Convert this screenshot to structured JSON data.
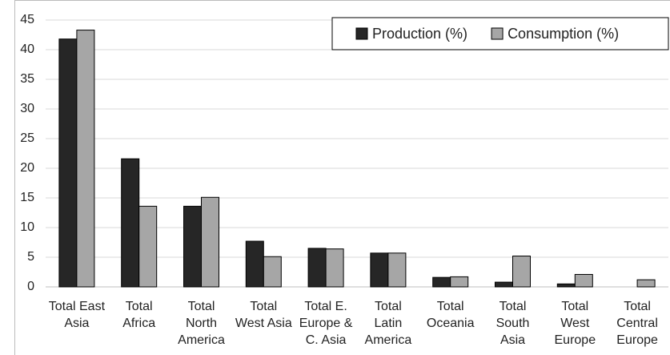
{
  "chart_data": {
    "type": "bar",
    "categories": [
      "Total East\nAsia",
      "Total\nAfrica",
      "Total\nNorth\nAmerica",
      "Total\nWest Asia",
      "Total E.\nEurope &\nC. Asia",
      "Total\nLatin\nAmerica",
      "Total\nOceania",
      "Total\nSouth\nAsia",
      "Total\nWest\nEurope",
      "Total\nCentral\nEurope"
    ],
    "series": [
      {
        "name": "Production (%)",
        "color": "#262626",
        "values": [
          41.8,
          21.6,
          13.6,
          7.7,
          6.5,
          5.7,
          1.6,
          0.8,
          0.5,
          0
        ]
      },
      {
        "name": "Consumption (%)",
        "color": "#a6a6a6",
        "values": [
          43.3,
          13.6,
          15.1,
          5.1,
          6.4,
          5.7,
          1.7,
          5.2,
          2.1,
          1.2
        ]
      }
    ],
    "ylim": [
      0,
      45
    ],
    "yticks": [
      0,
      5,
      10,
      15,
      20,
      25,
      30,
      35,
      40,
      45
    ],
    "grid": true,
    "legend": "top-right"
  }
}
